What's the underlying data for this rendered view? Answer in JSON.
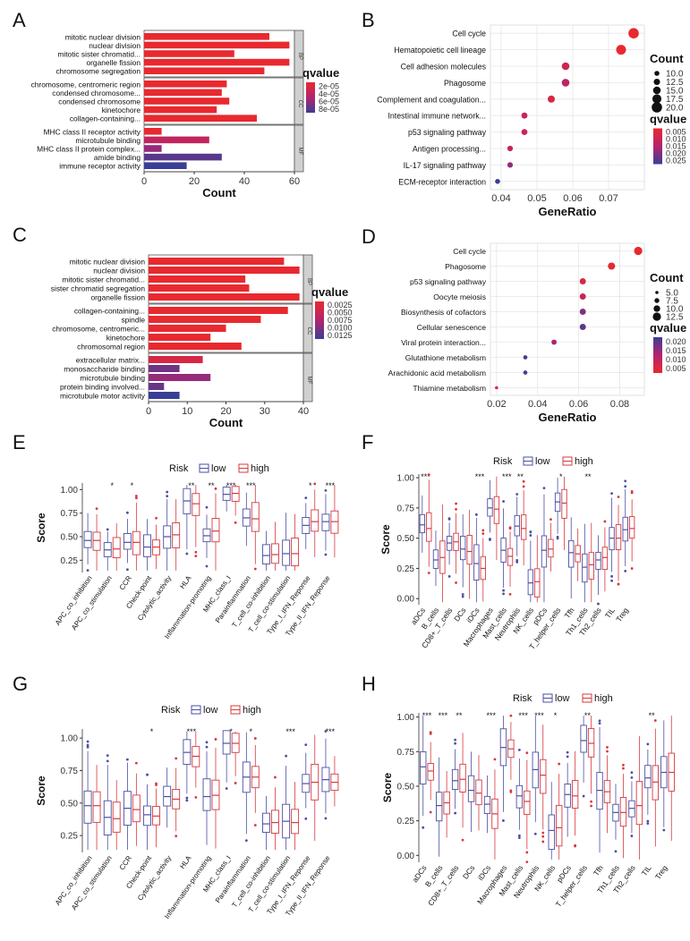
{
  "chart_data": [
    {
      "id": "A",
      "type": "bar",
      "panel_label": "A",
      "xlabel": "Count",
      "xlim": [
        0,
        60
      ],
      "xticks": [
        0,
        20,
        40,
        60
      ],
      "groups": [
        {
          "name": "BP",
          "categories": [
            "mitotic nuclear division",
            "nuclear division",
            "mitotic sister chromatid...",
            "organelle fission",
            "chromosome segregation"
          ],
          "values": [
            50,
            58,
            36,
            58,
            48
          ],
          "qvalues": [
            1e-05,
            1e-05,
            1e-05,
            1e-05,
            1e-05
          ]
        },
        {
          "name": "CC",
          "categories": [
            "chromosome, centromeric region",
            "condensed chromosome...",
            "condensed chromosome",
            "kinetochore",
            "collagen-containing..."
          ],
          "values": [
            33,
            31,
            34,
            29,
            45
          ],
          "qvalues": [
            1e-05,
            1e-05,
            1e-05,
            1e-05,
            1e-05
          ]
        },
        {
          "name": "MF",
          "categories": [
            "MHC class II receptor activity",
            "microtubule binding",
            "MHC class II protein complex...",
            "amide binding",
            "immune receptor activity"
          ],
          "values": [
            7,
            26,
            7,
            31,
            17
          ],
          "qvalues": [
            1e-05,
            4e-05,
            6e-05,
            8e-05,
            9e-05
          ]
        }
      ],
      "legend": {
        "title": "qvalue",
        "labels": [
          "2e-05",
          "4e-05",
          "6e-05",
          "8e-05"
        ],
        "range": [
          1e-05,
          9e-05
        ]
      }
    },
    {
      "id": "B",
      "type": "scatter",
      "panel_label": "B",
      "xlabel": "GeneRatio",
      "xlim": [
        0.037,
        0.08
      ],
      "xticks": [
        0.04,
        0.05,
        0.06,
        0.07
      ],
      "terms": [
        "Cell cycle",
        "Hematopoietic cell lineage",
        "Cell adhesion molecules",
        "Phagosome",
        "Complement and coagulation...",
        "Intestinal immune network...",
        "p53 signaling pathway",
        "Antigen processing...",
        "IL-17 signaling pathway",
        "ECM-receptor interaction"
      ],
      "gene_ratio": [
        0.077,
        0.0735,
        0.058,
        0.058,
        0.054,
        0.0465,
        0.0465,
        0.0425,
        0.0425,
        0.039
      ],
      "count": [
        20,
        19,
        15,
        15,
        14,
        12,
        12,
        11,
        11,
        10
      ],
      "qvalues": [
        0.001,
        0.001,
        0.008,
        0.012,
        0.005,
        0.009,
        0.009,
        0.011,
        0.017,
        0.027
      ],
      "legend_count": {
        "title": "Count",
        "labels": [
          "10.0",
          "12.5",
          "15.0",
          "17.5",
          "20.0"
        ]
      },
      "legend_q": {
        "title": "qvalue",
        "labels": [
          "0.005",
          "0.010",
          "0.015",
          "0.020",
          "0.025"
        ],
        "range": [
          0.001,
          0.027
        ]
      }
    },
    {
      "id": "C",
      "type": "bar",
      "panel_label": "C",
      "xlabel": "Count",
      "xlim": [
        0,
        40
      ],
      "xticks": [
        0,
        10,
        20,
        30,
        40
      ],
      "groups": [
        {
          "name": "BP",
          "categories": [
            "mitotic nuclear division",
            "nuclear division",
            "mitotic sister chromatid...",
            "sister chromatid segregation",
            "organelle fission"
          ],
          "values": [
            35,
            39,
            25,
            26,
            39
          ],
          "qvalues": [
            0.0002,
            0.0002,
            0.0002,
            0.0002,
            0.0002
          ]
        },
        {
          "name": "CC",
          "categories": [
            "collagen-containing...",
            "spindle",
            "chromosome, centromeric...",
            "kinetochore",
            "chromosomal region"
          ],
          "values": [
            36,
            29,
            20,
            16,
            24
          ],
          "qvalues": [
            0.0002,
            0.0002,
            0.0002,
            0.0002,
            0.0002
          ]
        },
        {
          "name": "MF",
          "categories": [
            "extracellular matrix...",
            "monosaccharide binding",
            "microtubule binding",
            "protein binding involved...",
            "microtubule motor activity"
          ],
          "values": [
            14,
            8,
            16,
            4,
            8
          ],
          "qvalues": [
            0.0025,
            0.0105,
            0.0085,
            0.011,
            0.0135
          ]
        }
      ],
      "legend": {
        "title": "qvalue",
        "labels": [
          "0.0025",
          "0.0050",
          "0.0075",
          "0.0100",
          "0.0125"
        ],
        "range": [
          0.0002,
          0.0135
        ]
      }
    },
    {
      "id": "D",
      "type": "scatter",
      "panel_label": "D",
      "xlabel": "GeneRatio",
      "xlim": [
        0.017,
        0.092
      ],
      "xticks": [
        0.02,
        0.04,
        0.06,
        0.08
      ],
      "terms": [
        "Cell cycle",
        "Phagosome",
        "p53 signaling pathway",
        "Oocyte meiosis",
        "Biosynthesis of cofactors",
        "Cellular senescence",
        "Viral protein interaction...",
        "Glutathione metabolism",
        "Arachidonic acid metabolism",
        "Thiamine metabolism"
      ],
      "gene_ratio": [
        0.089,
        0.076,
        0.062,
        0.062,
        0.062,
        0.062,
        0.048,
        0.034,
        0.034,
        0.02
      ],
      "count": [
        13,
        11,
        9,
        9,
        9,
        9,
        7,
        5,
        5,
        3
      ],
      "qvalues": [
        0.003,
        0.004,
        0.006,
        0.009,
        0.017,
        0.02,
        0.014,
        0.022,
        0.022,
        0.006
      ],
      "legend_count": {
        "title": "Count",
        "labels": [
          "5.0",
          "7.5",
          "10.0",
          "12.5"
        ]
      },
      "legend_q": {
        "title": "qvalue",
        "labels": [
          "0.020",
          "0.015",
          "0.010",
          "0.005"
        ],
        "range": [
          0.003,
          0.023
        ]
      }
    },
    {
      "id": "E",
      "type": "box",
      "panel_label": "E",
      "legend_title": "Risk",
      "legend_items": [
        "low",
        "high"
      ],
      "ylabel": "Score",
      "ylim": [
        0.12,
        1.07
      ],
      "yticks": [
        "0.25",
        "0.50",
        "0.75",
        "1.00"
      ],
      "categories": [
        "APC_co_inhibition",
        "APC_co_stimulation",
        "CCR",
        "Check-point",
        "Cytolytic_activity",
        "HLA",
        "Inflammation-promoting",
        "MHC_class_I",
        "Parainflammation",
        "T_cell_co-inhibition",
        "T_cell_co-stimulation",
        "Type_I_IFN_Reponse",
        "Type_II_IFN_Reponse"
      ],
      "significance": [
        "",
        "*",
        "*",
        "",
        "",
        "**",
        "**",
        "***",
        "***",
        "",
        "",
        "*",
        "***"
      ],
      "low_median": [
        0.46,
        0.36,
        0.44,
        0.39,
        0.5,
        0.88,
        0.51,
        0.95,
        0.7,
        0.3,
        0.32,
        0.62,
        0.66
      ],
      "high_median": [
        0.46,
        0.37,
        0.44,
        0.39,
        0.52,
        0.85,
        0.56,
        0.96,
        0.69,
        0.31,
        0.32,
        0.66,
        0.66
      ]
    },
    {
      "id": "F",
      "type": "box",
      "panel_label": "F",
      "legend_title": "Risk",
      "legend_items": [
        "low",
        "high"
      ],
      "ylabel": "Score",
      "ylim": [
        -0.05,
        1.03
      ],
      "yticks": [
        "0.00",
        "0.25",
        "0.50",
        "0.75",
        "1.00"
      ],
      "categories": [
        "aDCs",
        "B_cells",
        "CD8+_T_cells",
        "DCs",
        "iDCs",
        "Macrophages",
        "Mast_cells",
        "Neutrophils",
        "NK_cells",
        "pDCs",
        "T_helper_cells",
        "Tfh",
        "Th1_cells",
        "Th2_cells",
        "TIL",
        "Treg"
      ],
      "significance": [
        "***",
        "",
        "",
        "",
        "***",
        "",
        "***",
        "**",
        "",
        "",
        "*",
        "",
        "**",
        "",
        "",
        ""
      ],
      "low_median": [
        0.61,
        0.32,
        0.46,
        0.41,
        0.29,
        0.75,
        0.4,
        0.6,
        0.13,
        0.4,
        0.8,
        0.38,
        0.26,
        0.32,
        0.5,
        0.57
      ],
      "high_median": [
        0.58,
        0.34,
        0.47,
        0.39,
        0.25,
        0.74,
        0.35,
        0.58,
        0.14,
        0.41,
        0.79,
        0.37,
        0.28,
        0.34,
        0.5,
        0.58
      ]
    },
    {
      "id": "G",
      "type": "box",
      "panel_label": "G",
      "legend_title": "Risk",
      "legend_items": [
        "low",
        "high"
      ],
      "ylabel": "Score",
      "ylim": [
        0.12,
        1.07
      ],
      "yticks": [
        "0.25",
        "0.50",
        "0.75",
        "1.00"
      ],
      "categories": [
        "APC_co_inhibition",
        "APC_co_stimulation",
        "CCR",
        "Check-point",
        "Cytolytic_activity",
        "HLA",
        "Inflammation-promoting",
        "MHC_class_I",
        "Parainflammation",
        "T_cell_co-inhibition",
        "T_cell_co-stimulation",
        "Type_I_IFN_Reponse",
        "Type_II_IFN_Reponse"
      ],
      "significance": [
        "",
        "",
        "",
        "*",
        "",
        "***",
        "",
        "*",
        "*",
        "",
        "***",
        "",
        "***"
      ],
      "low_median": [
        0.48,
        0.39,
        0.46,
        0.41,
        0.55,
        0.89,
        0.55,
        0.96,
        0.7,
        0.34,
        0.36,
        0.65,
        0.68
      ],
      "high_median": [
        0.48,
        0.38,
        0.45,
        0.4,
        0.53,
        0.86,
        0.56,
        0.96,
        0.7,
        0.35,
        0.35,
        0.66,
        0.66
      ]
    },
    {
      "id": "H",
      "type": "box",
      "panel_label": "H",
      "legend_title": "Risk",
      "legend_items": [
        "low",
        "high"
      ],
      "ylabel": "Score",
      "ylim": [
        -0.05,
        1.03
      ],
      "yticks": [
        "0.00",
        "0.25",
        "0.50",
        "0.75",
        "1.00"
      ],
      "categories": [
        "aDCs",
        "B_cells",
        "CD8+_T_cells",
        "DCs",
        "iDCs",
        "Macrophages",
        "Mast_cells",
        "Neutrophils",
        "NK_cells",
        "pDCs",
        "T_helper_cells",
        "Tfh",
        "Th1_cells",
        "Th2_cells",
        "TIL",
        "Treg"
      ],
      "significance": [
        "***",
        "***",
        "**",
        "",
        "***",
        "",
        "***",
        "***",
        "*",
        "",
        "**",
        "",
        "",
        "",
        "**",
        ""
      ],
      "low_median": [
        0.64,
        0.36,
        0.54,
        0.47,
        0.37,
        0.78,
        0.43,
        0.62,
        0.18,
        0.44,
        0.83,
        0.47,
        0.31,
        0.34,
        0.56,
        0.6
      ],
      "high_median": [
        0.61,
        0.38,
        0.55,
        0.45,
        0.3,
        0.77,
        0.39,
        0.58,
        0.2,
        0.43,
        0.81,
        0.46,
        0.31,
        0.36,
        0.53,
        0.6
      ]
    }
  ],
  "colors": {
    "q_low": "#e8292f",
    "q_mid": "#b4246f",
    "q_high": "#3a3f96",
    "low_box": "#4a4fa3",
    "high_box": "#d9383e",
    "strip": "#d0d0d0",
    "grid_panel": "#ebebeb"
  }
}
